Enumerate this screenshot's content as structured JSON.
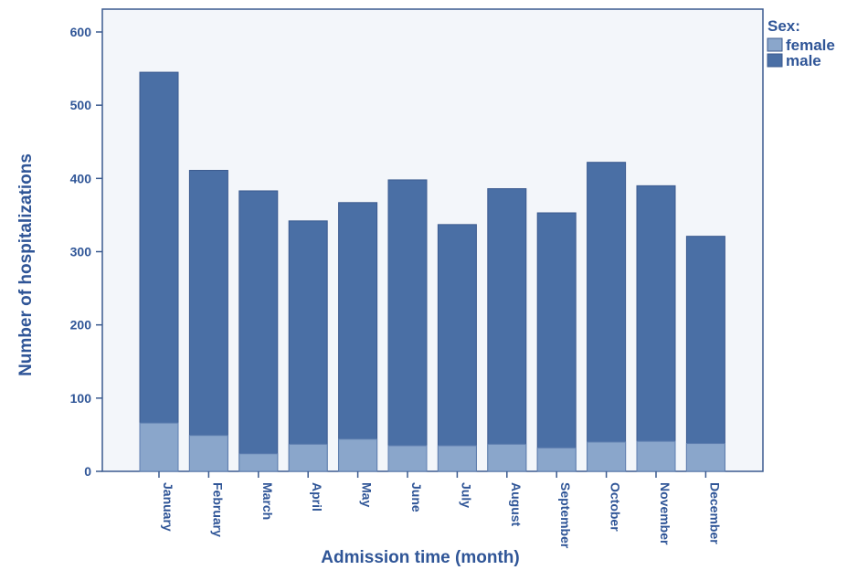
{
  "chart_data": {
    "type": "bar",
    "stacked": false,
    "overlapping": true,
    "xlabel": "Admission time (month)",
    "ylabel": "Number of hospitalizations",
    "ylim": [
      0,
      600
    ],
    "yticks": [
      0,
      100,
      200,
      300,
      400,
      500,
      600
    ],
    "categories": [
      "January",
      "February",
      "March",
      "April",
      "May",
      "June",
      "July",
      "August",
      "September",
      "October",
      "November",
      "December"
    ],
    "legend": {
      "title": "Sex:",
      "position": "right"
    },
    "series": [
      {
        "name": "male",
        "color": "#4a6fa5",
        "values": [
          545,
          411,
          383,
          342,
          367,
          398,
          337,
          386,
          353,
          422,
          390,
          321
        ]
      },
      {
        "name": "female",
        "color": "#8aa6cb",
        "values": [
          66,
          49,
          24,
          37,
          44,
          35,
          35,
          37,
          32,
          40,
          41,
          38
        ]
      }
    ],
    "colors": {
      "plot_background": "#f3f6fa",
      "frame": "#3b5a8f",
      "text": "#2f5597"
    }
  }
}
